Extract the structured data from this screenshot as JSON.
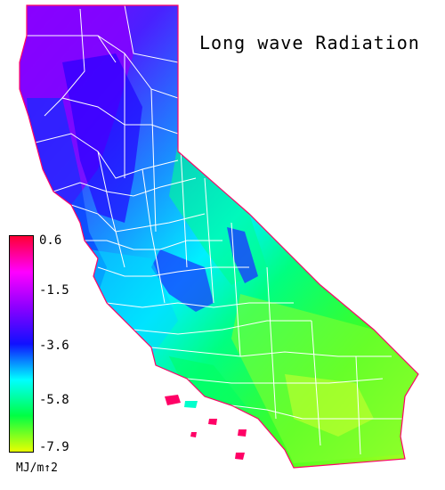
{
  "title": "Long wave Radiation",
  "legend": {
    "ticks": [
      "0.6",
      "-1.5",
      "-3.6",
      "-5.8",
      "-7.9"
    ],
    "unit": "MJ/m↑2",
    "colors": [
      "#ff0033",
      "#ff00ff",
      "#8a00ff",
      "#1010ff",
      "#00ffff",
      "#00ff44",
      "#e8ff00"
    ]
  },
  "map": {
    "region": "california-counties",
    "colors": {
      "coast_north": "#8a00ff",
      "central_valley": "#1a2fff",
      "sierra": "#00ff88",
      "desert": "#8aff20",
      "coastal_south": "#00e0ff",
      "county_border": "#ffffff",
      "state_border": "#ff0066"
    }
  }
}
